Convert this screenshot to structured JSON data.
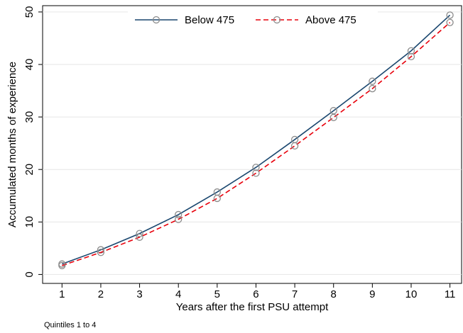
{
  "chart_data": {
    "type": "line",
    "x_label": "Years after the first PSU attempt",
    "y_label": "Accumulated months of experience",
    "note": "Quintiles 1 to 4",
    "x": [
      1,
      2,
      3,
      4,
      5,
      6,
      7,
      8,
      9,
      10,
      11
    ],
    "series": [
      {
        "name": "Below 475",
        "color": "#1a476f",
        "dash": "solid",
        "values": [
          2.0,
          4.7,
          7.8,
          11.4,
          15.7,
          20.4,
          25.7,
          31.2,
          36.8,
          42.6,
          49.4
        ]
      },
      {
        "name": "Above 475",
        "color": "#e8000b",
        "dash": "dashed",
        "values": [
          1.7,
          4.2,
          7.1,
          10.5,
          14.5,
          19.3,
          24.5,
          29.9,
          35.4,
          41.5,
          48.0
        ]
      }
    ],
    "marker_color": "#8c8c8c",
    "xlim": [
      0.5,
      11.3
    ],
    "ylim": [
      -1.7,
      51.2
    ],
    "xticks": [
      1,
      2,
      3,
      4,
      5,
      6,
      7,
      8,
      9,
      10,
      11
    ],
    "yticks": [
      0,
      10,
      20,
      30,
      40,
      50
    ],
    "grid": true,
    "legend": "top"
  }
}
